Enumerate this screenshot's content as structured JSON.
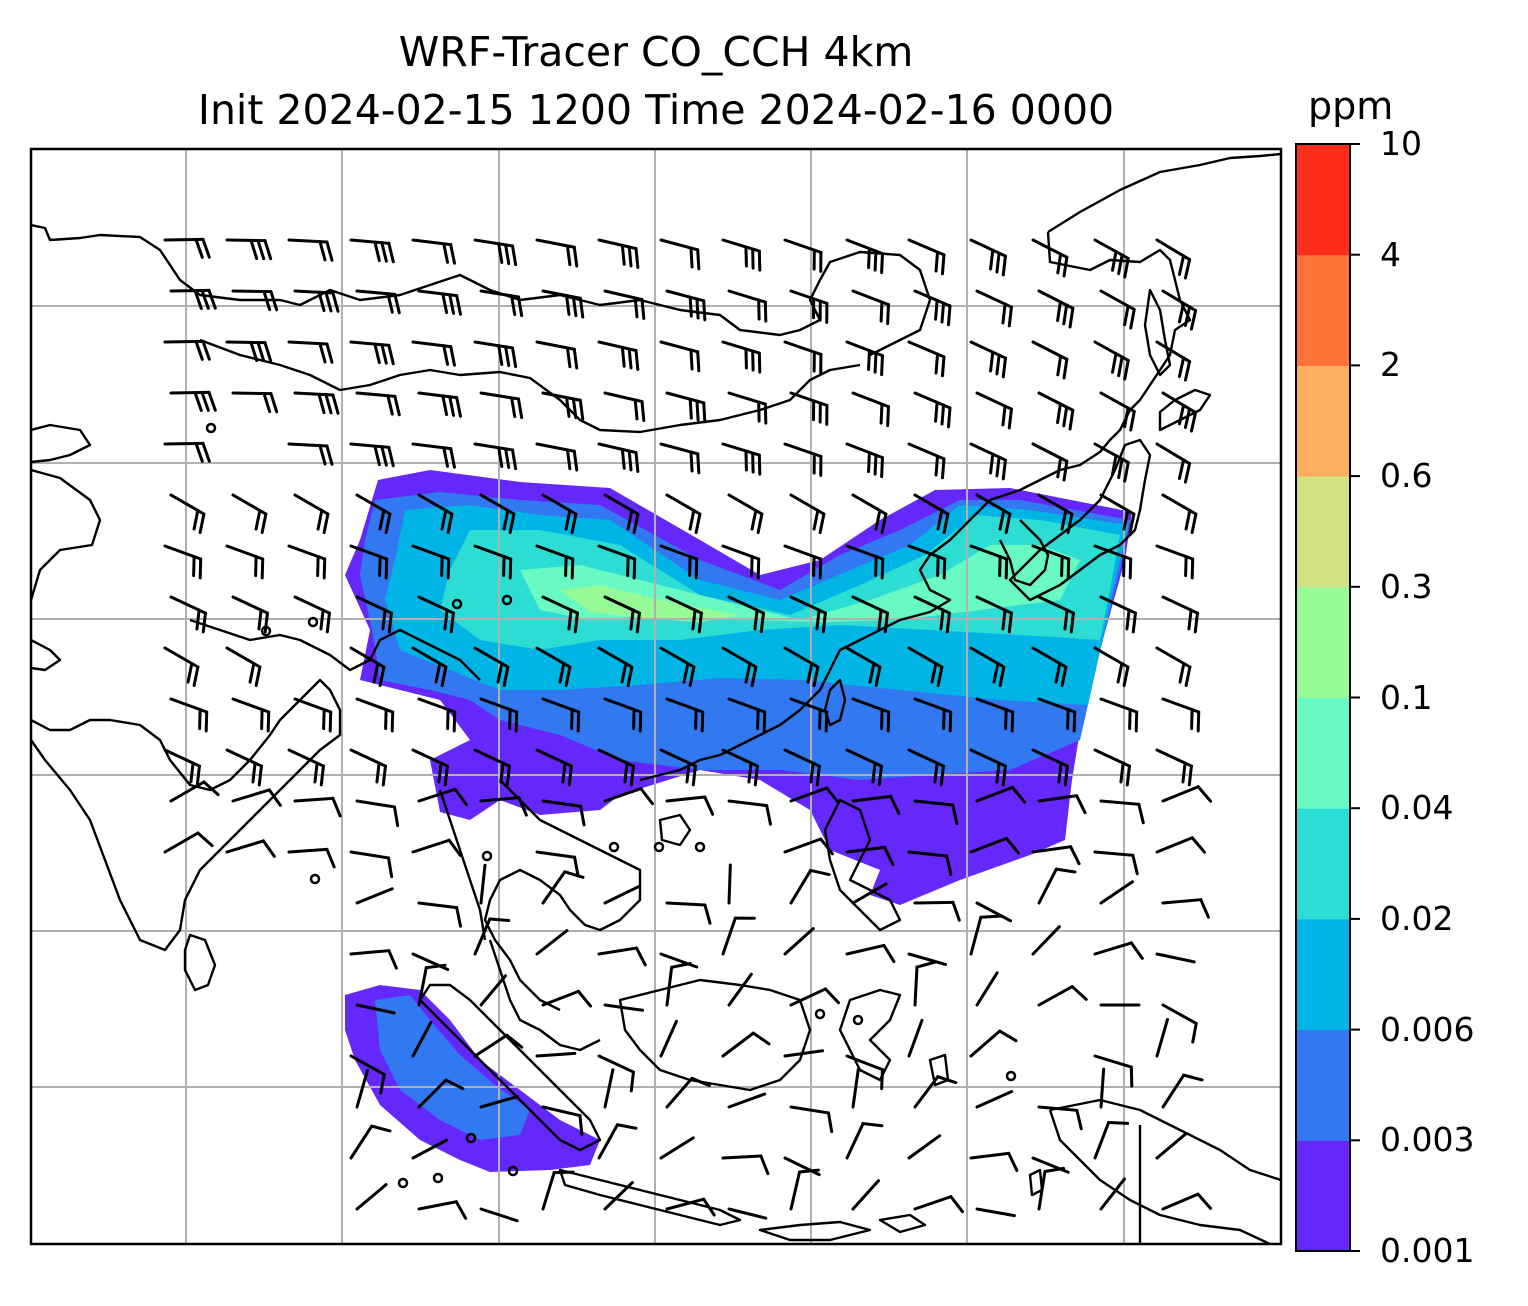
{
  "title": {
    "line1": "WRF-Tracer CO_CCH 4km",
    "line2": "Init 2024-02-15 1200 Time 2024-02-16 0000"
  },
  "colorbar": {
    "unit": "ppm",
    "levels": [
      "0.001",
      "0.003",
      "0.006",
      "0.02",
      "0.04",
      "0.1",
      "0.3",
      "0.6",
      "2",
      "4",
      "10"
    ],
    "colors": [
      "#6428fa",
      "#3278f0",
      "#00b4e6",
      "#2ddcd2",
      "#69fac3",
      "#96fa96",
      "#d2e183",
      "#ffaf5f",
      "#ff7337",
      "#ff2d19"
    ]
  },
  "map": {
    "gridlines": true,
    "coastline_color": "#000000",
    "grid_color": "#b0b0b0",
    "wind_barbs": "black",
    "field": "CO tracer concentration"
  }
}
